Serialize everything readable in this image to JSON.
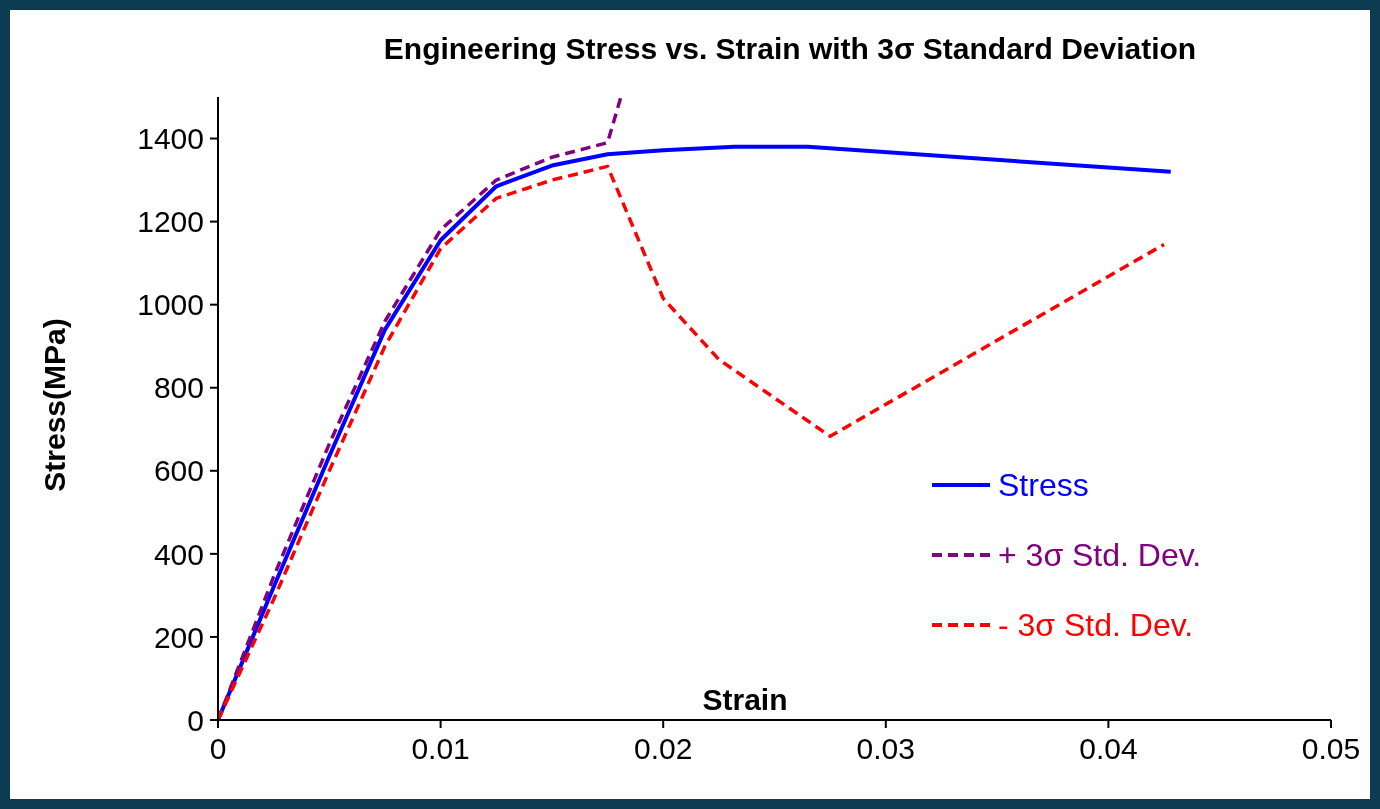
{
  "chart_data": {
    "type": "line",
    "title": "Engineering Stress vs. Strain with 3σ Standard Deviation",
    "xlabel": "Strain",
    "ylabel": "Stress(MPa)",
    "xlim": [
      0,
      0.05
    ],
    "xticks": [
      0,
      0.01,
      0.02,
      0.03,
      0.04,
      0.05
    ],
    "ylim": [
      0,
      1500
    ],
    "yticks": [
      0,
      200,
      400,
      600,
      800,
      1000,
      1200,
      1400
    ],
    "grid": false,
    "legend": "right",
    "marker": "none",
    "series": [
      {
        "name": "Stress",
        "color": "#0000ff",
        "line_style": "solid",
        "x": [
          0,
          0.0025,
          0.005,
          0.0075,
          0.01,
          0.0125,
          0.015,
          0.0175,
          0.02,
          0.0232,
          0.0265,
          0.0428
        ],
        "values": [
          0,
          320,
          635,
          940,
          1155,
          1285,
          1335,
          1362,
          1372,
          1380,
          1380,
          1320
        ]
      },
      {
        "name": "+ 3σ Std. Dev.",
        "color": "#800080",
        "line_style": "dashed",
        "x": [
          0,
          0.0025,
          0.005,
          0.0075,
          0.01,
          0.0125,
          0.015,
          0.0175,
          0.0181
        ],
        "values": [
          0,
          345,
          665,
          960,
          1180,
          1300,
          1355,
          1390,
          1500
        ]
      },
      {
        "name": "- 3σ Std. Dev.",
        "color": "#ff0000",
        "line_style": "dashed",
        "x": [
          0,
          0.0025,
          0.005,
          0.0075,
          0.01,
          0.0125,
          0.015,
          0.0175,
          0.02,
          0.0225,
          0.0275,
          0.0425
        ],
        "values": [
          0,
          290,
          600,
          900,
          1135,
          1256,
          1300,
          1333,
          1015,
          868,
          683,
          1145
        ]
      }
    ]
  }
}
